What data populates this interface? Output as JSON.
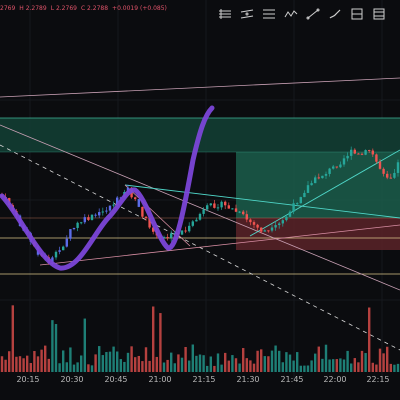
{
  "header": {
    "ohlc_values": [
      "2769",
      "H 2.2789",
      "L 2.2769",
      "C 2.2788",
      "+0.0019 (+0.085)"
    ]
  },
  "toolbar": {
    "tools": [
      {
        "name": "horizontal-lines-icon"
      },
      {
        "name": "parallel-channel-icon"
      },
      {
        "name": "fib-retracement-icon"
      },
      {
        "name": "pattern-tool-icon"
      },
      {
        "name": "trend-line-icon"
      },
      {
        "name": "brush-tool-icon"
      },
      {
        "name": "long-position-icon"
      },
      {
        "name": "short-position-icon"
      }
    ]
  },
  "colors": {
    "background": "#0b0c0f",
    "up_candle": "#26a69a",
    "down_candle": "#ef5350",
    "highlight_candle": "#5b6ce8",
    "brush_stroke": "#7b46d8",
    "profit_zone": "#1b5e4b",
    "loss_zone": "#5a2328",
    "level_line_yellow": "#d8c48a",
    "trend_line_cyan": "#4fd6c8"
  },
  "time_axis": {
    "labels": [
      "20:15",
      "20:30",
      "20:45",
      "21:00",
      "21:15",
      "21:30",
      "21:45",
      "22:00",
      "22:15"
    ]
  }
}
